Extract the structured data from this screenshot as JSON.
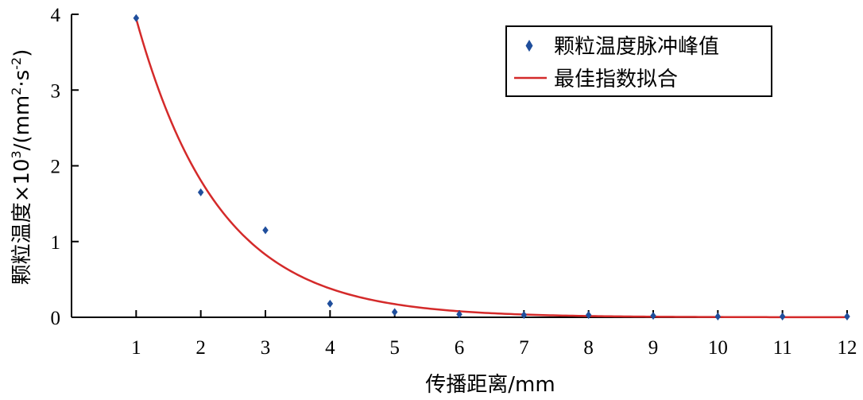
{
  "chart_data": {
    "type": "scatter",
    "title": "",
    "xlabel": "传播距离/mm",
    "ylabel_main": "颗粒温度×10",
    "ylabel_exp": "3",
    "ylabel_unit_open": "/(mm",
    "ylabel_unit_sq": "2",
    "ylabel_unit_mid": "·s",
    "ylabel_unit_neg": "-2",
    "ylabel_unit_close": ")",
    "xlim": [
      0,
      12
    ],
    "ylim": [
      0,
      4
    ],
    "xticks": [
      1,
      2,
      3,
      4,
      5,
      6,
      7,
      8,
      9,
      10,
      11,
      12
    ],
    "yticks": [
      0,
      1,
      2,
      3,
      4
    ],
    "grid": false,
    "legend_position": "top-right",
    "series": [
      {
        "name": "颗粒温度脉冲峰值",
        "kind": "scatter",
        "marker": "diamond",
        "color": "#1f4e9c",
        "x": [
          1,
          2,
          3,
          4,
          5,
          6,
          7,
          8,
          9,
          10,
          11,
          12
        ],
        "y": [
          3.95,
          1.65,
          1.15,
          0.18,
          0.07,
          0.04,
          0.03,
          0.03,
          0.02,
          0.01,
          0.01,
          0.01
        ]
      },
      {
        "name": "最佳指数拟合",
        "kind": "line",
        "color": "#d42a2a",
        "fit": {
          "a": 8.6,
          "b": 0.78
        }
      }
    ]
  }
}
